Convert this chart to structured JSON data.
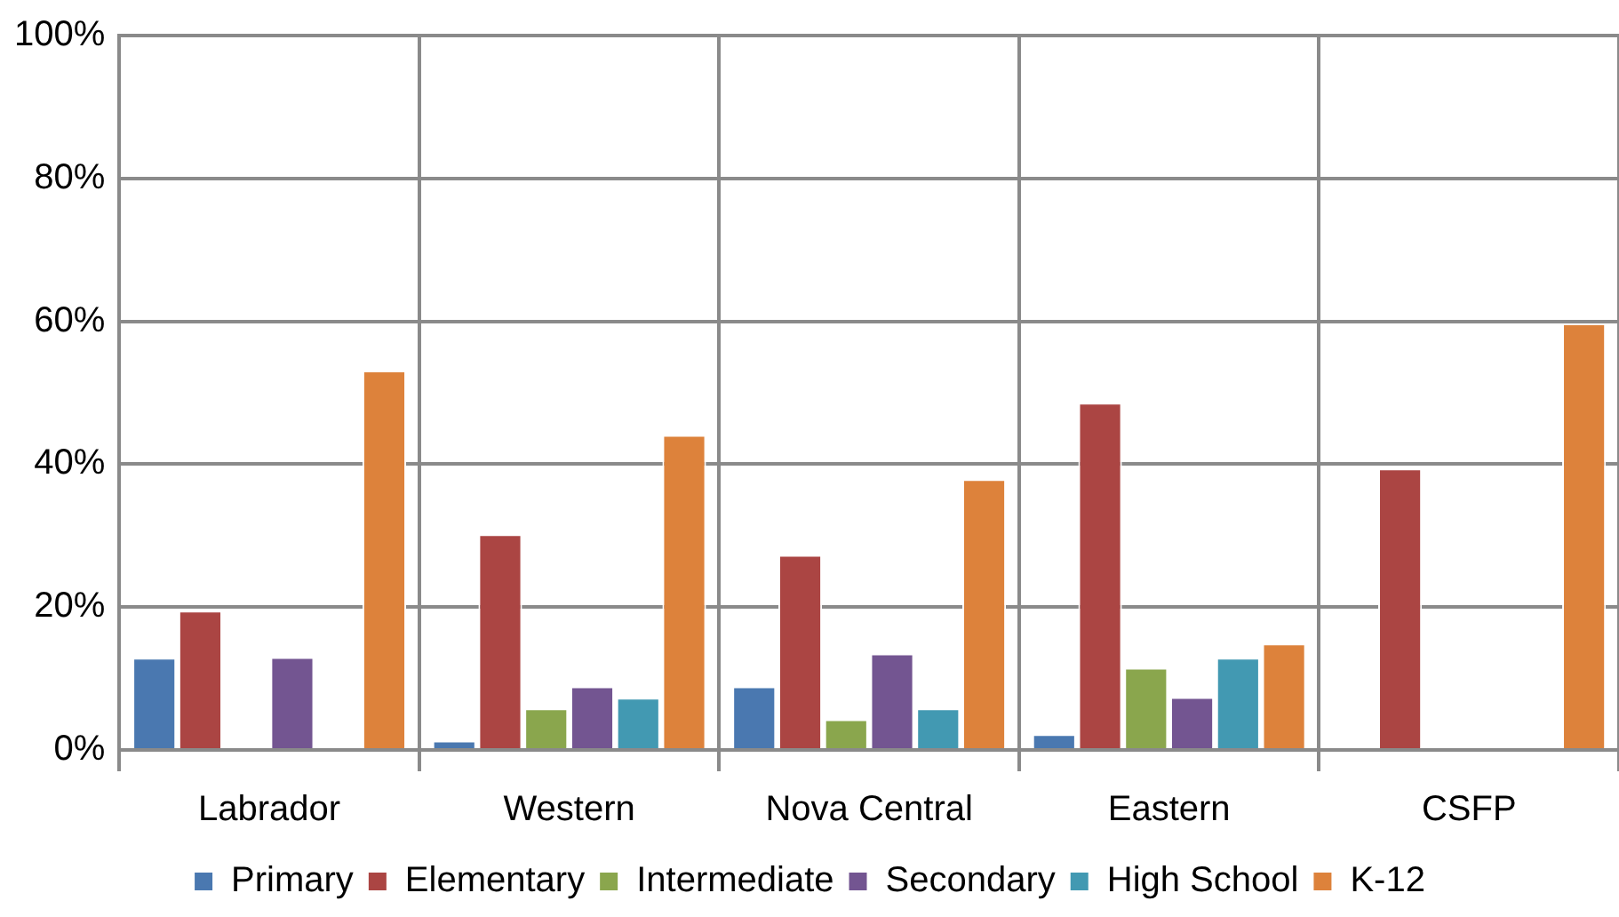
{
  "chart_data": {
    "type": "bar",
    "categories": [
      "Labrador",
      "Western",
      "Nova Central",
      "Eastern",
      "CSFP"
    ],
    "series": [
      {
        "name": "Primary",
        "color": "#4a78b0",
        "values": [
          12.9,
          1.3,
          8.9,
          2.2,
          null
        ]
      },
      {
        "name": "Elementary",
        "color": "#ab4543",
        "values": [
          19.5,
          30.2,
          27.3,
          48.6,
          39.4
        ]
      },
      {
        "name": "Intermediate",
        "color": "#8aa64d",
        "values": [
          null,
          5.8,
          4.3,
          11.5,
          null
        ]
      },
      {
        "name": "Secondary",
        "color": "#735591",
        "values": [
          13,
          8.9,
          13.5,
          7.4,
          null
        ]
      },
      {
        "name": "High School",
        "color": "#4299b2",
        "values": [
          null,
          7.3,
          5.8,
          12.9,
          null
        ]
      },
      {
        "name": "K-12",
        "color": "#dd823b",
        "values": [
          53.1,
          44.1,
          37.9,
          14.9,
          59.7
        ]
      }
    ],
    "ylim": [
      0,
      100
    ],
    "yticks": [
      {
        "value": 0,
        "label": "0%"
      },
      {
        "value": 20,
        "label": "20%"
      },
      {
        "value": 40,
        "label": "40%"
      },
      {
        "value": 60,
        "label": "60%"
      },
      {
        "value": 80,
        "label": "80%"
      },
      {
        "value": 100,
        "label": "100%"
      }
    ],
    "grid": true,
    "legend": "bottom"
  }
}
